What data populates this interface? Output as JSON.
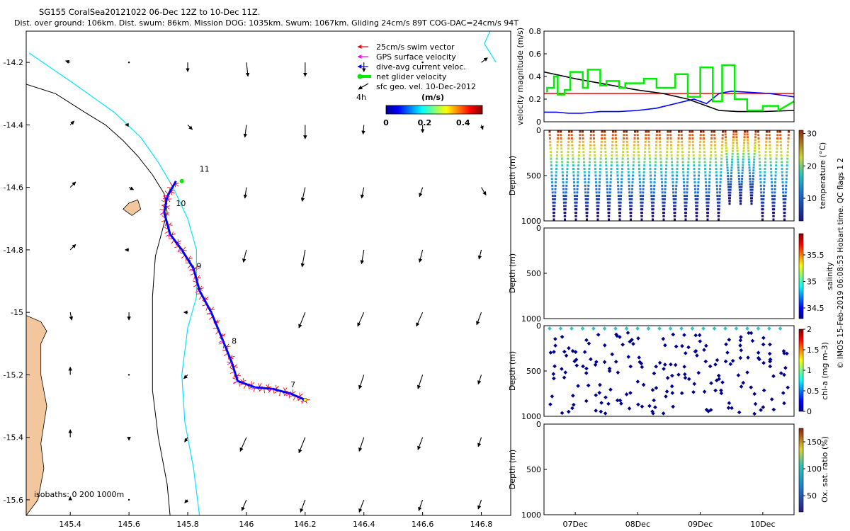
{
  "header": {
    "title": "SG155 CoralSea20121022 06-Dec 12Z to 10-Dec 11Z.",
    "subtitle": "Dist. over ground: 106km. Dist. swum: 86km. Mission DOG: 1035km. Swum: 1067km. Gliding 24cm/s 89T COG-DAC=24cm/s 94T"
  },
  "credit": "© IMOS 15-Feb-2019 06:08:53 Hobart time. QC flags 1  2",
  "colors": {
    "land": "#f2c79e",
    "isobath_200": "#000000",
    "isobath_1000": "#00e5ff",
    "swim_vector": "#ff0000",
    "gps_velocity": "#ff00ff",
    "dive_avg_current": "#0000ff",
    "net_glider": "#00ee00"
  },
  "chart_data": [
    {
      "type": "map",
      "panel": "track",
      "xlim": [
        145.25,
        146.9
      ],
      "ylim": [
        -15.65,
        -14.1
      ],
      "xticks": [
        145.4,
        145.6,
        145.8,
        146,
        146.2,
        146.4,
        146.6,
        146.8
      ],
      "xtick_labels": [
        "145.4",
        "145.6",
        "145.8",
        "146",
        "146.2",
        "146.4",
        "146.6",
        "146.8"
      ],
      "yticks": [
        -14.2,
        -14.4,
        -14.6,
        -14.8,
        -15,
        -15.2,
        -15.4,
        -15.6
      ],
      "ytick_labels": [
        "-14.2",
        "-14.4",
        "-14.6",
        "-14.8",
        "-15",
        "-15.2",
        "-15.4",
        "-15.6"
      ],
      "legend": {
        "position": "top-right",
        "items": [
          {
            "label": "25cm/s swim vector",
            "color": "#ff0000"
          },
          {
            "label": "GPS surface velocity",
            "color": "#ff00ff"
          },
          {
            "label": "dive-avg current veloc.",
            "color": "#0000ff"
          },
          {
            "label": "net glider velocity",
            "color": "#00ee00"
          },
          {
            "label": "sfc geo. vel. 10-Dec-2012",
            "color": "#000000"
          }
        ],
        "tag": "4h"
      },
      "colorbar": {
        "label": "(m/s)",
        "range": [
          0,
          0.5
        ],
        "ticks": [
          0,
          0.2,
          0.4
        ],
        "tick_labels": [
          "0",
          "0.2",
          "0.4"
        ]
      },
      "day_labels": [
        {
          "label": "11",
          "lon": 145.84,
          "lat": -14.55
        },
        {
          "label": "10",
          "lon": 145.76,
          "lat": -14.66
        },
        {
          "label": "9",
          "lon": 145.83,
          "lat": -14.86
        },
        {
          "label": "8",
          "lon": 145.95,
          "lat": -15.1
        },
        {
          "label": "7",
          "lon": 146.15,
          "lat": -15.24
        }
      ],
      "track": [
        [
          146.2,
          -15.28
        ],
        [
          146.15,
          -15.26
        ],
        [
          146.09,
          -15.245
        ],
        [
          146.03,
          -15.24
        ],
        [
          145.97,
          -15.22
        ],
        [
          145.95,
          -15.16
        ],
        [
          145.92,
          -15.09
        ],
        [
          145.88,
          -15.0
        ],
        [
          145.84,
          -14.93
        ],
        [
          145.82,
          -14.86
        ],
        [
          145.78,
          -14.8
        ],
        [
          145.74,
          -14.75
        ],
        [
          145.72,
          -14.68
        ],
        [
          145.73,
          -14.63
        ],
        [
          145.76,
          -14.58
        ]
      ],
      "start_marker": [
        145.78,
        -14.58
      ],
      "end_marker": [
        146.2,
        -15.28
      ],
      "isobaths_label": "isobaths: 0   200  1000m",
      "isobath_200": [
        [
          145.25,
          -14.27
        ],
        [
          145.35,
          -14.3
        ],
        [
          145.45,
          -14.36
        ],
        [
          145.52,
          -14.4
        ],
        [
          145.58,
          -14.45
        ],
        [
          145.63,
          -14.5
        ],
        [
          145.68,
          -14.56
        ],
        [
          145.72,
          -14.62
        ],
        [
          145.73,
          -14.68
        ],
        [
          145.71,
          -14.75
        ],
        [
          145.69,
          -14.82
        ],
        [
          145.68,
          -14.95
        ],
        [
          145.68,
          -15.1
        ],
        [
          145.68,
          -15.25
        ],
        [
          145.7,
          -15.4
        ],
        [
          145.73,
          -15.55
        ],
        [
          145.74,
          -15.65
        ]
      ],
      "isobath_1000": [
        [
          145.26,
          -14.17
        ],
        [
          145.4,
          -14.26
        ],
        [
          145.55,
          -14.36
        ],
        [
          145.64,
          -14.44
        ],
        [
          145.7,
          -14.52
        ],
        [
          145.75,
          -14.6
        ],
        [
          145.8,
          -14.7
        ],
        [
          145.83,
          -14.8
        ],
        [
          145.83,
          -14.95
        ],
        [
          145.8,
          -15.05
        ],
        [
          145.78,
          -15.2
        ],
        [
          145.79,
          -15.35
        ],
        [
          145.82,
          -15.5
        ],
        [
          145.84,
          -15.65
        ]
      ],
      "isobath_1000_corner": [
        [
          146.83,
          -14.1
        ],
        [
          146.81,
          -14.14
        ],
        [
          146.85,
          -14.2
        ]
      ],
      "coast": [
        [
          145.25,
          -15.01
        ],
        [
          145.3,
          -15.03
        ],
        [
          145.32,
          -15.06
        ],
        [
          145.3,
          -15.1
        ],
        [
          145.3,
          -15.2
        ],
        [
          145.32,
          -15.3
        ],
        [
          145.3,
          -15.42
        ],
        [
          145.31,
          -15.5
        ],
        [
          145.29,
          -15.6
        ],
        [
          145.25,
          -15.65
        ]
      ],
      "island": [
        [
          145.6,
          -14.65
        ],
        [
          145.63,
          -14.64
        ],
        [
          145.64,
          -14.67
        ],
        [
          145.61,
          -14.69
        ],
        [
          145.58,
          -14.67
        ]
      ],
      "geo_vectors": [
        {
          "lon": 145.4,
          "lat": -14.2,
          "u": -0.06,
          "v": 0.02
        },
        {
          "lon": 145.6,
          "lat": -14.2,
          "u": 0.0,
          "v": 0.0
        },
        {
          "lon": 145.8,
          "lat": -14.2,
          "u": 0.0,
          "v": -0.12
        },
        {
          "lon": 146.0,
          "lat": -14.2,
          "u": 0.02,
          "v": -0.18
        },
        {
          "lon": 146.2,
          "lat": -14.2,
          "u": 0.0,
          "v": -0.18
        },
        {
          "lon": 146.4,
          "lat": -14.2,
          "u": 0.0,
          "v": -0.12
        },
        {
          "lon": 146.6,
          "lat": -14.2,
          "u": 0.0,
          "v": 0.0
        },
        {
          "lon": 146.8,
          "lat": -14.2,
          "u": 0.08,
          "v": 0.06
        },
        {
          "lon": 145.4,
          "lat": -14.4,
          "u": 0.05,
          "v": 0.05
        },
        {
          "lon": 145.6,
          "lat": -14.4,
          "u": -0.05,
          "v": 0.0
        },
        {
          "lon": 145.8,
          "lat": -14.4,
          "u": 0.06,
          "v": -0.06
        },
        {
          "lon": 146.0,
          "lat": -14.4,
          "u": -0.02,
          "v": -0.16
        },
        {
          "lon": 146.2,
          "lat": -14.4,
          "u": 0.0,
          "v": -0.18
        },
        {
          "lon": 146.4,
          "lat": -14.4,
          "u": -0.01,
          "v": -0.12
        },
        {
          "lon": 146.6,
          "lat": -14.4,
          "u": 0.0,
          "v": -0.1
        },
        {
          "lon": 146.8,
          "lat": -14.4,
          "u": 0.02,
          "v": -0.06
        },
        {
          "lon": 145.4,
          "lat": -14.6,
          "u": 0.07,
          "v": 0.07
        },
        {
          "lon": 145.6,
          "lat": -14.6,
          "u": 0.06,
          "v": -0.03
        },
        {
          "lon": 146.0,
          "lat": -14.6,
          "u": -0.02,
          "v": -0.14
        },
        {
          "lon": 146.2,
          "lat": -14.6,
          "u": -0.04,
          "v": -0.18
        },
        {
          "lon": 146.4,
          "lat": -14.6,
          "u": -0.03,
          "v": -0.14
        },
        {
          "lon": 146.6,
          "lat": -14.6,
          "u": -0.04,
          "v": -0.12
        },
        {
          "lon": 146.8,
          "lat": -14.6,
          "u": 0.06,
          "v": -0.1
        },
        {
          "lon": 145.4,
          "lat": -14.8,
          "u": 0.07,
          "v": 0.07
        },
        {
          "lon": 145.6,
          "lat": -14.8,
          "u": -0.05,
          "v": 0.0
        },
        {
          "lon": 146.0,
          "lat": -14.8,
          "u": -0.04,
          "v": -0.16
        },
        {
          "lon": 146.2,
          "lat": -14.8,
          "u": -0.04,
          "v": -0.22
        },
        {
          "lon": 146.4,
          "lat": -14.8,
          "u": -0.03,
          "v": -0.18
        },
        {
          "lon": 146.6,
          "lat": -14.8,
          "u": -0.04,
          "v": -0.16
        },
        {
          "lon": 146.8,
          "lat": -14.8,
          "u": -0.03,
          "v": -0.12
        },
        {
          "lon": 145.4,
          "lat": -15.0,
          "u": 0.02,
          "v": -0.1
        },
        {
          "lon": 145.6,
          "lat": -15.0,
          "u": 0.0,
          "v": -0.1
        },
        {
          "lon": 145.8,
          "lat": -15.0,
          "u": -0.05,
          "v": 0.0
        },
        {
          "lon": 146.2,
          "lat": -15.0,
          "u": -0.08,
          "v": -0.2
        },
        {
          "lon": 146.4,
          "lat": -15.0,
          "u": -0.08,
          "v": -0.18
        },
        {
          "lon": 146.6,
          "lat": -15.0,
          "u": -0.08,
          "v": -0.18
        },
        {
          "lon": 146.8,
          "lat": -15.0,
          "u": -0.06,
          "v": -0.16
        },
        {
          "lon": 145.4,
          "lat": -15.2,
          "u": 0.0,
          "v": 0.1
        },
        {
          "lon": 145.6,
          "lat": -15.2,
          "u": 0.0,
          "v": 0.0
        },
        {
          "lon": 145.8,
          "lat": -15.2,
          "u": -0.05,
          "v": -0.05
        },
        {
          "lon": 146.4,
          "lat": -15.2,
          "u": -0.06,
          "v": -0.18
        },
        {
          "lon": 146.6,
          "lat": -15.2,
          "u": -0.06,
          "v": -0.18
        },
        {
          "lon": 146.8,
          "lat": -15.2,
          "u": -0.04,
          "v": -0.12
        },
        {
          "lon": 145.4,
          "lat": -15.4,
          "u": 0.0,
          "v": 0.1
        },
        {
          "lon": 145.6,
          "lat": -15.4,
          "u": 0.0,
          "v": -0.04
        },
        {
          "lon": 145.8,
          "lat": -15.4,
          "u": -0.04,
          "v": -0.06
        },
        {
          "lon": 146.0,
          "lat": -15.4,
          "u": -0.08,
          "v": -0.18
        },
        {
          "lon": 146.2,
          "lat": -15.4,
          "u": -0.08,
          "v": -0.2
        },
        {
          "lon": 146.4,
          "lat": -15.4,
          "u": -0.06,
          "v": -0.18
        },
        {
          "lon": 146.6,
          "lat": -15.4,
          "u": -0.06,
          "v": -0.16
        },
        {
          "lon": 146.8,
          "lat": -15.4,
          "u": -0.04,
          "v": -0.12
        },
        {
          "lon": 145.4,
          "lat": -15.6,
          "u": 0.0,
          "v": 0.04
        },
        {
          "lon": 145.6,
          "lat": -15.6,
          "u": 0.0,
          "v": 0.0
        },
        {
          "lon": 145.8,
          "lat": -15.6,
          "u": -0.04,
          "v": -0.04
        },
        {
          "lon": 146.0,
          "lat": -15.6,
          "u": -0.06,
          "v": -0.14
        },
        {
          "lon": 146.2,
          "lat": -15.6,
          "u": -0.06,
          "v": -0.16
        },
        {
          "lon": 146.4,
          "lat": -15.6,
          "u": -0.06,
          "v": -0.16
        },
        {
          "lon": 146.6,
          "lat": -15.6,
          "u": -0.05,
          "v": -0.14
        },
        {
          "lon": 146.8,
          "lat": -15.6,
          "u": -0.04,
          "v": -0.12
        }
      ]
    },
    {
      "type": "line",
      "panel": "velocity",
      "ylabel": "velocity magnitude (m/s)",
      "xlim": [
        6.5,
        10.5
      ],
      "ylim": [
        0,
        0.8
      ],
      "yticks": [
        0,
        0.2,
        0.4,
        0.6,
        0.8
      ],
      "ytick_labels": [
        "0",
        "0.2",
        "0.4",
        "0.6",
        "0.8"
      ],
      "series": [
        {
          "color": "#ff0000",
          "x": [
            6.5,
            10.5
          ],
          "y": [
            0.25,
            0.25
          ]
        },
        {
          "color": "#0000ff",
          "x": [
            6.5,
            6.7,
            6.9,
            7.1,
            7.4,
            7.7,
            8.0,
            8.3,
            8.6,
            8.9,
            9.1,
            9.3,
            9.5,
            9.8,
            10.1,
            10.5
          ],
          "y": [
            0.085,
            0.085,
            0.075,
            0.075,
            0.09,
            0.09,
            0.1,
            0.12,
            0.16,
            0.2,
            0.16,
            0.25,
            0.27,
            0.26,
            0.25,
            0.22
          ]
        },
        {
          "color": "#000000",
          "x": [
            6.5,
            7.0,
            7.5,
            8.0,
            8.4,
            8.8,
            9.0,
            9.3,
            9.6,
            10.0,
            10.5
          ],
          "y": [
            0.44,
            0.38,
            0.33,
            0.28,
            0.25,
            0.2,
            0.16,
            0.1,
            0.09,
            0.09,
            0.1
          ]
        },
        {
          "color": "#00ee00",
          "x": [
            6.55,
            6.55,
            6.66,
            6.66,
            6.72,
            6.72,
            6.83,
            6.83,
            6.92,
            6.92,
            7.12,
            7.12,
            7.2,
            7.2,
            7.4,
            7.4,
            7.5,
            7.5,
            7.7,
            7.7,
            7.8,
            7.8,
            8.1,
            8.1,
            8.3,
            8.3,
            8.6,
            8.6,
            8.8,
            8.8,
            9.0,
            9.0,
            9.2,
            9.2,
            9.35,
            9.35,
            9.55,
            9.55,
            9.75,
            9.75,
            10.0,
            10.0,
            10.25,
            10.25,
            10.5
          ],
          "y": [
            0.26,
            0.3,
            0.3,
            0.4,
            0.4,
            0.24,
            0.24,
            0.28,
            0.28,
            0.44,
            0.44,
            0.3,
            0.3,
            0.46,
            0.46,
            0.32,
            0.32,
            0.36,
            0.36,
            0.3,
            0.3,
            0.34,
            0.34,
            0.38,
            0.38,
            0.3,
            0.3,
            0.42,
            0.42,
            0.22,
            0.22,
            0.48,
            0.48,
            0.18,
            0.18,
            0.5,
            0.5,
            0.2,
            0.2,
            0.1,
            0.1,
            0.14,
            0.14,
            0.1,
            0.18
          ]
        }
      ]
    },
    {
      "type": "scatter",
      "panel": "temperature",
      "ylabel": "Depth (m)",
      "colorbar_label": "temperature (°C)",
      "color_ticks": [
        10,
        20,
        30
      ],
      "color_tick_labels": [
        "10",
        "20",
        "30"
      ],
      "color_range": [
        3,
        31
      ],
      "ylim": [
        1000,
        0
      ],
      "yticks": [
        0,
        500,
        1000
      ],
      "ytick_labels": [
        "0",
        "500",
        "1000"
      ],
      "profile_count": 22,
      "max_depth": 1000
    },
    {
      "type": "scatter",
      "panel": "salinity",
      "ylabel": "Depth (m)",
      "colorbar_label": "salinity",
      "color_ticks": [
        34.5,
        35,
        35.5
      ],
      "color_tick_labels": [
        "34.5",
        "35",
        "35.5"
      ],
      "color_range": [
        34.3,
        35.9
      ],
      "ylim": [
        1000,
        0
      ],
      "yticks": [
        0,
        500,
        1000
      ],
      "ytick_labels": [
        "0",
        "500",
        "1000"
      ]
    },
    {
      "type": "scatter",
      "panel": "chlorophyll",
      "ylabel": "Depth (m)",
      "colorbar_label": "chl-a (mg m-3)",
      "color_ticks": [
        0,
        0.5,
        1,
        1.5,
        2
      ],
      "color_tick_labels": [
        "0",
        "0.5",
        "1",
        "1.5",
        "2"
      ],
      "color_range": [
        0,
        2
      ],
      "ylim": [
        1000,
        0
      ],
      "yticks": [
        0,
        500,
        1000
      ],
      "ytick_labels": [
        "0",
        "500",
        "1000"
      ]
    },
    {
      "type": "scatter",
      "panel": "oxygen",
      "ylabel": "Depth (m)",
      "colorbar_label": "Ox. sat. ratio (%)",
      "color_ticks": [
        50,
        100,
        150
      ],
      "color_tick_labels": [
        "50",
        "100",
        "150"
      ],
      "color_range": [
        20,
        175
      ],
      "ylim": [
        1000,
        0
      ],
      "yticks": [
        0,
        500,
        1000
      ],
      "ytick_labels": [
        "0",
        "500",
        "1000"
      ],
      "xlim": [
        6.5,
        10.5
      ],
      "xticks": [
        7,
        8,
        9,
        10
      ],
      "xtick_labels": [
        "07Dec",
        "08Dec",
        "09Dec",
        "10Dec"
      ]
    }
  ]
}
